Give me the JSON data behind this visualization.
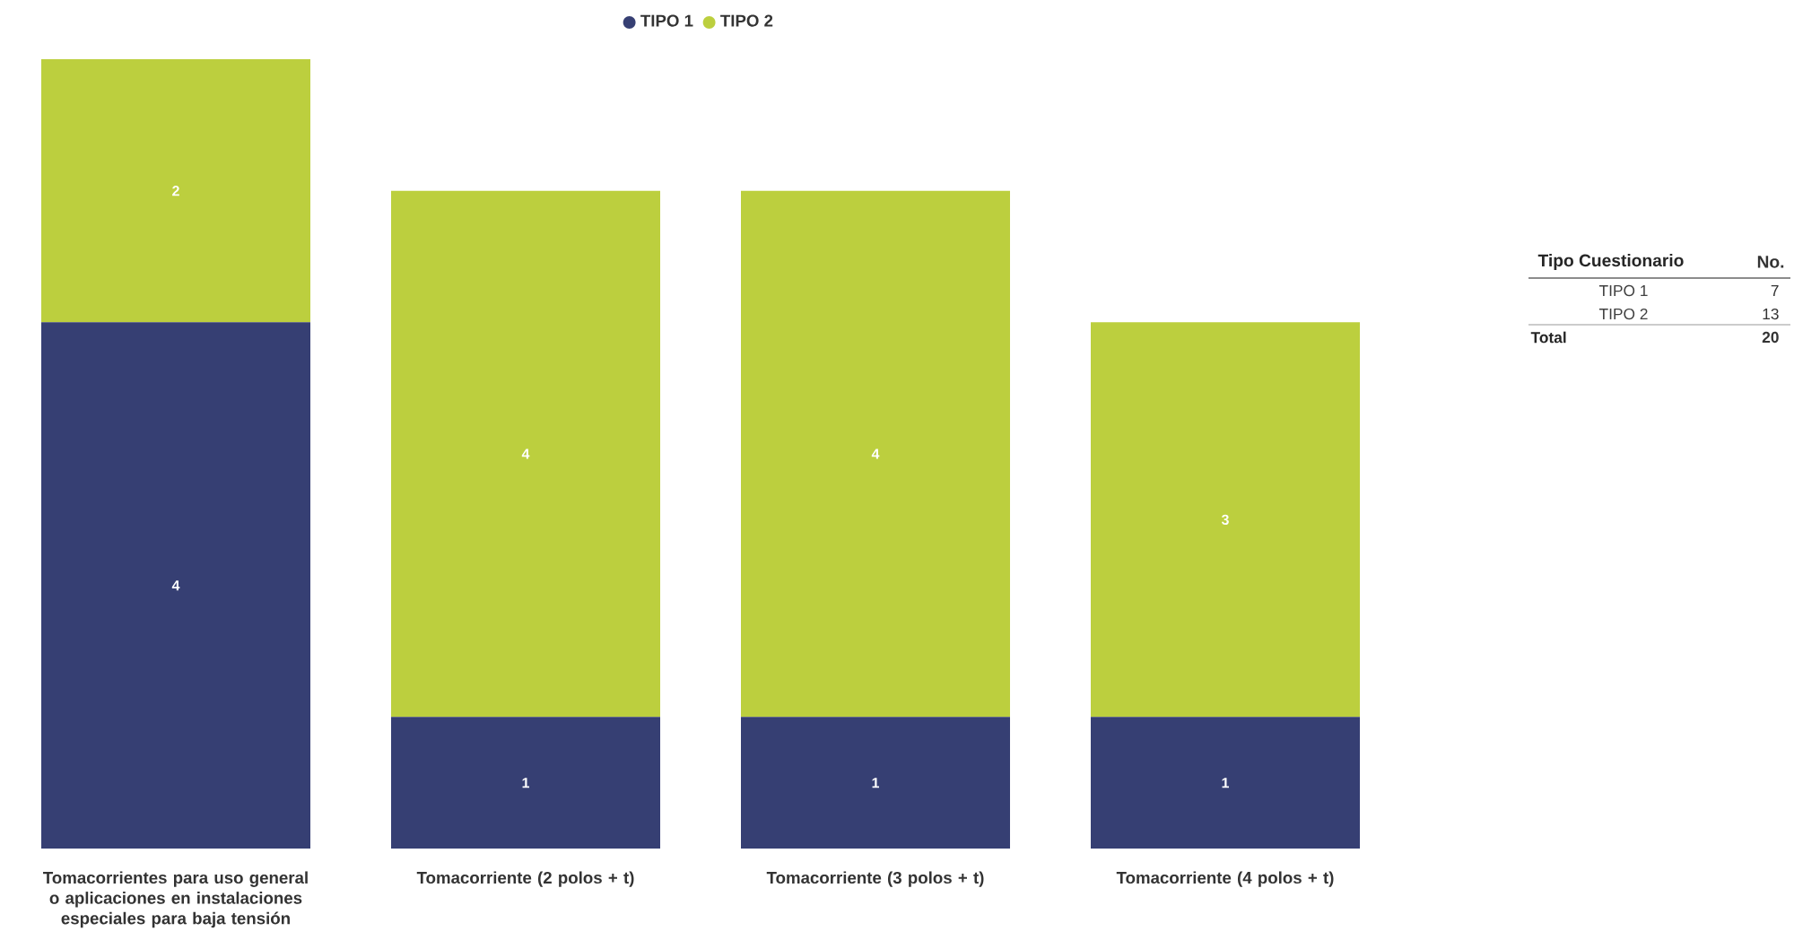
{
  "chart_data": {
    "type": "bar",
    "stacked": true,
    "data_labels": true,
    "legend": "top",
    "categories": [
      "Tomacorrientes para uso general o aplicaciones en instalaciones especiales para baja tensión",
      "Tomacorriente (2 polos + t)",
      "Tomacorriente (3 polos + t)",
      "Tomacorriente (4 polos + t)"
    ],
    "series": [
      {
        "name": "TIPO 1",
        "color": "#363f73",
        "values": [
          4,
          1,
          1,
          1
        ]
      },
      {
        "name": "TIPO 2",
        "color": "#bccf3e",
        "values": [
          2,
          4,
          4,
          3
        ]
      }
    ],
    "annotations": [
      "Tipo Cuestionario",
      "No.",
      "TIPO 1",
      "7",
      "TIPO 2",
      "13",
      "Total",
      "20"
    ]
  }
}
